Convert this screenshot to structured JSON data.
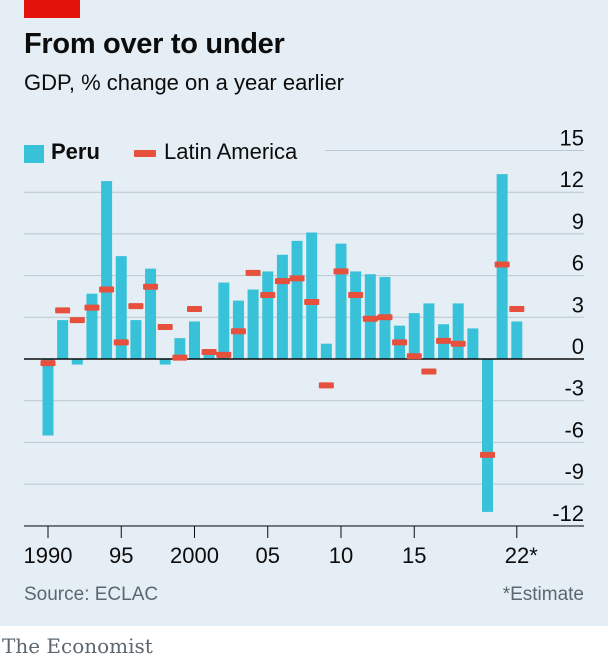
{
  "header": {
    "title": "From over to under",
    "subtitle": "GDP, % change on a year earlier"
  },
  "legend": {
    "peru": "Peru",
    "latin_america": "Latin America"
  },
  "footer": {
    "source": "Source: ECLAC",
    "footnote": "*Estimate",
    "brand": "The Economist"
  },
  "colors": {
    "peru": "#38c2d9",
    "latin_america": "#e6503c",
    "brand_red": "#e3120b",
    "background": "#e4eef4"
  },
  "chart_data": {
    "type": "bar",
    "x": [
      1990,
      1991,
      1992,
      1993,
      1994,
      1995,
      1996,
      1997,
      1998,
      1999,
      2000,
      2001,
      2002,
      2003,
      2004,
      2005,
      2006,
      2007,
      2008,
      2009,
      2010,
      2011,
      2012,
      2013,
      2014,
      2015,
      2016,
      2017,
      2018,
      2019,
      2020,
      2021,
      2022
    ],
    "x_tick_labels": [
      {
        "x": 1990,
        "label": "1990"
      },
      {
        "x": 1995,
        "label": "95"
      },
      {
        "x": 2000,
        "label": "2000"
      },
      {
        "x": 2005,
        "label": "05"
      },
      {
        "x": 2010,
        "label": "10"
      },
      {
        "x": 2015,
        "label": "15"
      },
      {
        "x": 2022,
        "label": "22*"
      }
    ],
    "y_ticks": [
      15,
      12,
      9,
      6,
      3,
      0,
      -3,
      -6,
      -9,
      -12
    ],
    "y_tick_labels": [
      "15",
      "12",
      "9",
      "6",
      "3",
      "0",
      "-3",
      "-6",
      "-9",
      "-12"
    ],
    "ylim": [
      -12.5,
      15
    ],
    "grid": true,
    "legend_position": "top-left",
    "series": [
      {
        "name": "Peru",
        "kind": "bar",
        "values": [
          -5.5,
          2.8,
          -0.4,
          4.7,
          12.8,
          7.4,
          2.8,
          6.5,
          -0.4,
          1.5,
          2.7,
          0.6,
          5.5,
          4.2,
          5.0,
          6.3,
          7.5,
          8.5,
          9.1,
          1.1,
          8.3,
          6.3,
          6.1,
          5.9,
          2.4,
          3.3,
          4.0,
          2.5,
          4.0,
          2.2,
          -11.0,
          13.3,
          2.7
        ]
      },
      {
        "name": "Latin America",
        "kind": "marker",
        "values": [
          -0.3,
          3.5,
          2.8,
          3.7,
          5.0,
          1.2,
          3.8,
          5.2,
          2.3,
          0.1,
          3.6,
          0.5,
          0.3,
          2.0,
          6.2,
          4.6,
          5.6,
          5.8,
          4.1,
          -1.9,
          6.3,
          4.6,
          2.9,
          3.0,
          1.2,
          0.2,
          -0.9,
          1.3,
          1.1,
          null,
          -6.9,
          6.8,
          3.6
        ]
      }
    ]
  }
}
